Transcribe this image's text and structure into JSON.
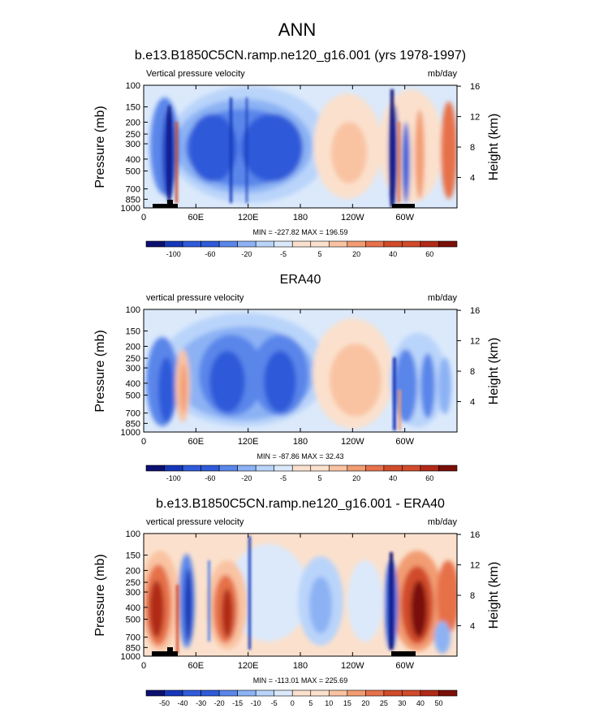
{
  "figure": {
    "main_title": "ANN",
    "left_axis_label": "Pressure (mb)",
    "right_axis_label": "Height (km)"
  },
  "colors": {
    "blue_dark": "#0b1070",
    "blue_deep": "#1536b8",
    "blue_mid": "#2f5ad9",
    "blue_med": "#5a86ea",
    "blue_light": "#8cb2f4",
    "blue_pale": "#b9d4fa",
    "blue_faint": "#dbe9fb",
    "orange_faint": "#fbe1cd",
    "orange_pale": "#f9c3a2",
    "orange_light": "#f29c72",
    "orange_med": "#e6714a",
    "red_mid": "#d14b2a",
    "red_deep": "#b02a17",
    "red_dark": "#7a0f08",
    "topo": "#000000"
  },
  "chart_data": [
    {
      "type": "heatmap",
      "title": "b.e13.B1850C5CN.ramp.ne120_g16.001 (yrs 1978-1997)",
      "left_label": "Vertical pressure velocity",
      "right_label": "mb/day",
      "ylabel": "Pressure (mb)",
      "y2label": "Height (km)",
      "pressure_ticks": [
        "100",
        "150",
        "200",
        "250",
        "300",
        "400",
        "500",
        "700",
        "850",
        "1000"
      ],
      "height_ticks": [
        "16",
        "12",
        "8",
        "4"
      ],
      "x_ticks": [
        "0",
        "60E",
        "120E",
        "180",
        "120W",
        "60W"
      ],
      "stats_text": "MIN = -227.82  MAX = 196.59",
      "colorbar_levels": [
        "-100",
        "-60",
        "-20",
        "-5",
        "5",
        "20",
        "40",
        "60"
      ],
      "xlim": [
        0,
        360
      ],
      "ylim": [
        1000,
        100
      ]
    },
    {
      "type": "heatmap",
      "title": "ERA40",
      "left_label": "vertical pressure velocity",
      "right_label": "mb/day",
      "ylabel": "Pressure (mb)",
      "y2label": "Height (km)",
      "pressure_ticks": [
        "100",
        "150",
        "200",
        "250",
        "300",
        "400",
        "500",
        "700",
        "850",
        "1000"
      ],
      "height_ticks": [
        "16",
        "12",
        "8",
        "4"
      ],
      "x_ticks": [
        "0",
        "60E",
        "120E",
        "180",
        "120W",
        "60W"
      ],
      "stats_text": "MIN = -87.86  MAX = 32.43",
      "colorbar_levels": [
        "-100",
        "-60",
        "-20",
        "-5",
        "5",
        "20",
        "40",
        "60"
      ],
      "xlim": [
        0,
        360
      ],
      "ylim": [
        1000,
        100
      ]
    },
    {
      "type": "heatmap",
      "title": "b.e13.B1850C5CN.ramp.ne120_g16.001 - ERA40",
      "left_label": "vertical pressure velocity",
      "right_label": "mb/day",
      "ylabel": "Pressure (mb)",
      "y2label": "Height (km)",
      "pressure_ticks": [
        "100",
        "150",
        "200",
        "250",
        "300",
        "400",
        "500",
        "700",
        "850",
        "1000"
      ],
      "height_ticks": [
        "16",
        "12",
        "8",
        "4"
      ],
      "x_ticks": [
        "0",
        "60E",
        "120E",
        "180",
        "120W",
        "60W"
      ],
      "stats_text": "MIN = -113.01  MAX = 225.69",
      "colorbar_levels": [
        "-50",
        "-40",
        "-30",
        "-20",
        "-15",
        "-10",
        "-5",
        "0",
        "5",
        "10",
        "15",
        "20",
        "25",
        "30",
        "40",
        "50"
      ],
      "xlim": [
        0,
        360
      ],
      "ylim": [
        1000,
        100
      ]
    }
  ]
}
